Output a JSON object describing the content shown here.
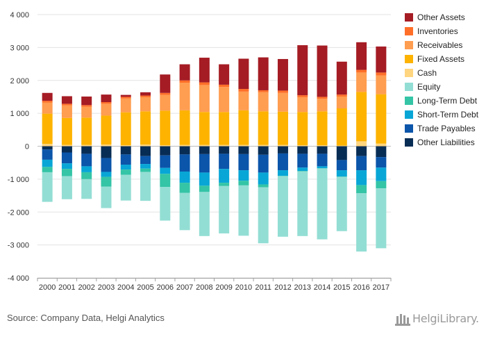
{
  "source": "Source: Company Data, Helgi Analytics",
  "logo": {
    "text": "HelgiLibrary.",
    "icon": "library-building-icon"
  },
  "chart_data": {
    "type": "bar",
    "stacked": true,
    "ylim": [
      -4000,
      4000
    ],
    "y_ticks": [
      -4000,
      -3000,
      -2000,
      -1000,
      0,
      1000,
      2000,
      3000,
      4000
    ],
    "y_tick_labels": [
      "-4 000",
      "-3 000",
      "-2 000",
      "-1 000",
      "0",
      "1 000",
      "2 000",
      "3 000",
      "4 000"
    ],
    "grid": true,
    "legend_position": "right",
    "categories": [
      "2000",
      "2001",
      "2002",
      "2003",
      "2004",
      "2005",
      "2006",
      "2007",
      "2008",
      "2009",
      "2010",
      "2011",
      "2012",
      "2013",
      "2014",
      "2015",
      "2016",
      "2017"
    ],
    "series": [
      {
        "name": "Other Assets",
        "color": "#a51c24",
        "values": [
          240,
          230,
          260,
          230,
          60,
          100,
          560,
          490,
          750,
          620,
          920,
          1000,
          960,
          1520,
          1560,
          1000,
          840,
          790
        ]
      },
      {
        "name": "Inventories",
        "color": "#ff6f28",
        "values": [
          50,
          50,
          50,
          50,
          50,
          50,
          60,
          70,
          80,
          70,
          80,
          60,
          70,
          60,
          60,
          60,
          80,
          90
        ]
      },
      {
        "name": "Receivables",
        "color": "#ff9d50",
        "values": [
          340,
          380,
          330,
          360,
          420,
          430,
          480,
          840,
          820,
          760,
          570,
          580,
          570,
          450,
          380,
          360,
          590,
          570
        ]
      },
      {
        "name": "Fixed Assets",
        "color": "#fdb300",
        "values": [
          920,
          820,
          830,
          880,
          1000,
          1010,
          1050,
          1050,
          1000,
          1000,
          1050,
          1020,
          1010,
          1010,
          1030,
          1130,
          1500,
          1500
        ]
      },
      {
        "name": "Cash",
        "color": "#ffd57f",
        "values": [
          70,
          40,
          40,
          50,
          30,
          50,
          30,
          40,
          40,
          40,
          40,
          40,
          40,
          30,
          30,
          20,
          150,
          80
        ]
      },
      {
        "name": "Equity",
        "color": "#93ded4",
        "values": [
          -900,
          -700,
          -600,
          -650,
          -780,
          -880,
          -1020,
          -1130,
          -1340,
          -1440,
          -1530,
          -1700,
          -1840,
          -1970,
          -2150,
          -1650,
          -1770,
          -1820
        ]
      },
      {
        "name": "Long-Term Debt",
        "color": "#34c4a6",
        "values": [
          -160,
          -220,
          -210,
          -300,
          -160,
          -100,
          -400,
          -310,
          -190,
          -100,
          -140,
          -90,
          -10,
          -10,
          -10,
          -10,
          -250,
          -220
        ]
      },
      {
        "name": "Short-Term Debt",
        "color": "#08a6d6",
        "values": [
          -220,
          -170,
          -180,
          -150,
          -150,
          -140,
          -180,
          -340,
          -400,
          -420,
          -320,
          -360,
          -170,
          -100,
          -60,
          -190,
          -450,
          -410
        ]
      },
      {
        "name": "Trade Payables",
        "color": "#0b55aa",
        "values": [
          -310,
          -330,
          -380,
          -420,
          -310,
          -240,
          -380,
          -520,
          -560,
          -460,
          -490,
          -540,
          -510,
          -420,
          -380,
          -310,
          -430,
          -320
        ]
      },
      {
        "name": "Other Liabilities",
        "color": "#082d55",
        "values": [
          -100,
          -190,
          -230,
          -360,
          -250,
          -300,
          -280,
          -250,
          -240,
          -230,
          -240,
          -260,
          -220,
          -230,
          -230,
          -420,
          -300,
          -330
        ]
      }
    ]
  }
}
